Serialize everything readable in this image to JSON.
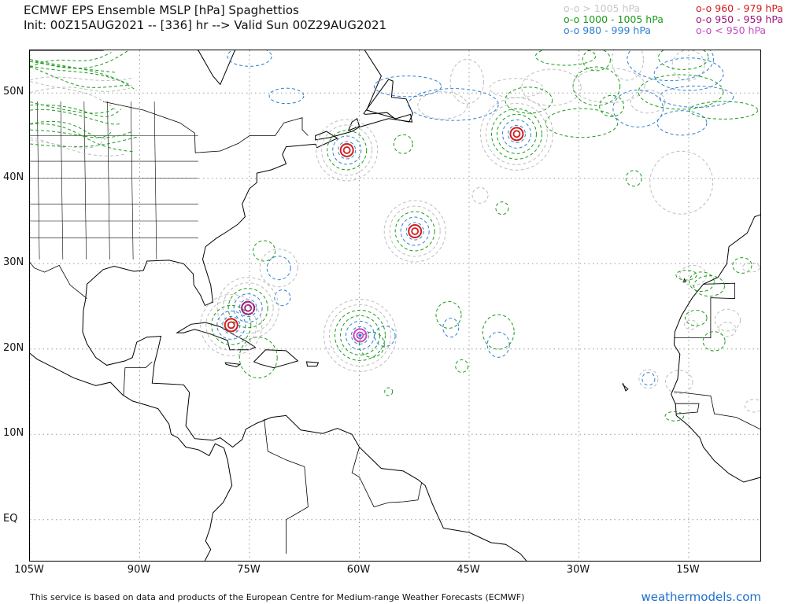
{
  "header": {
    "title_line1": "ECMWF EPS Ensemble MSLP [hPa] Spaghettios",
    "title_line2": "Init: 00Z15AUG2021 -- [336] hr --> Valid Sun 00Z29AUG2021"
  },
  "legend": {
    "items": [
      {
        "label": "o-o > 1005 hPa",
        "color": "#c8c8c8"
      },
      {
        "label": "o-o 1000 - 1005 hPa",
        "color": "#1a9a1a"
      },
      {
        "label": "o-o 980 - 999 hPa",
        "color": "#2f7fd0"
      },
      {
        "label": "o-o 960 - 979 hPa",
        "color": "#d21e1e"
      },
      {
        "label": "o-o 950 - 959 hPa",
        "color": "#a0187a"
      },
      {
        "label": "o-o < 950 hPa",
        "color": "#c34bc3"
      }
    ]
  },
  "map": {
    "lat_labels": [
      "50N",
      "40N",
      "30N",
      "20N",
      "10N",
      "EQ"
    ],
    "lon_labels": [
      "105W",
      "90W",
      "75W",
      "60W",
      "45W",
      "30W",
      "15W"
    ],
    "lat_values": [
      50,
      40,
      30,
      20,
      10,
      0
    ],
    "lon_values": [
      -105,
      -90,
      -75,
      -60,
      -45,
      -30,
      -15
    ],
    "extent": {
      "lon_min": -105,
      "lon_max": -5,
      "lat_min": -5,
      "lat_max": 55
    },
    "lows": [
      {
        "name": "low-north-atlantic",
        "lon": -38.5,
        "lat": 45.2,
        "class": "960-979",
        "rings": 4
      },
      {
        "name": "low-central-atlantic",
        "lon": -52.4,
        "lat": 33.8,
        "class": "960-979",
        "rings": 3
      },
      {
        "name": "low-east-of-antilles",
        "lon": -59.9,
        "lat": 21.6,
        "class": "<950",
        "rings": 4
      },
      {
        "name": "low-bahamas",
        "lon": -75.2,
        "lat": 24.8,
        "class": "950-959",
        "rings": 3
      },
      {
        "name": "low-cuba",
        "lon": -77.5,
        "lat": 22.8,
        "class": "960-979",
        "rings": 3
      },
      {
        "name": "low-newfoundland-south",
        "lon": -61.7,
        "lat": 43.3,
        "class": "960-979",
        "rings": 3
      }
    ]
  },
  "footer": {
    "disclaimer": "This service is based on data and products of the European Centre for Medium-range Weather Forecasts (ECMWF)",
    "brand": "weathermodels.com"
  }
}
